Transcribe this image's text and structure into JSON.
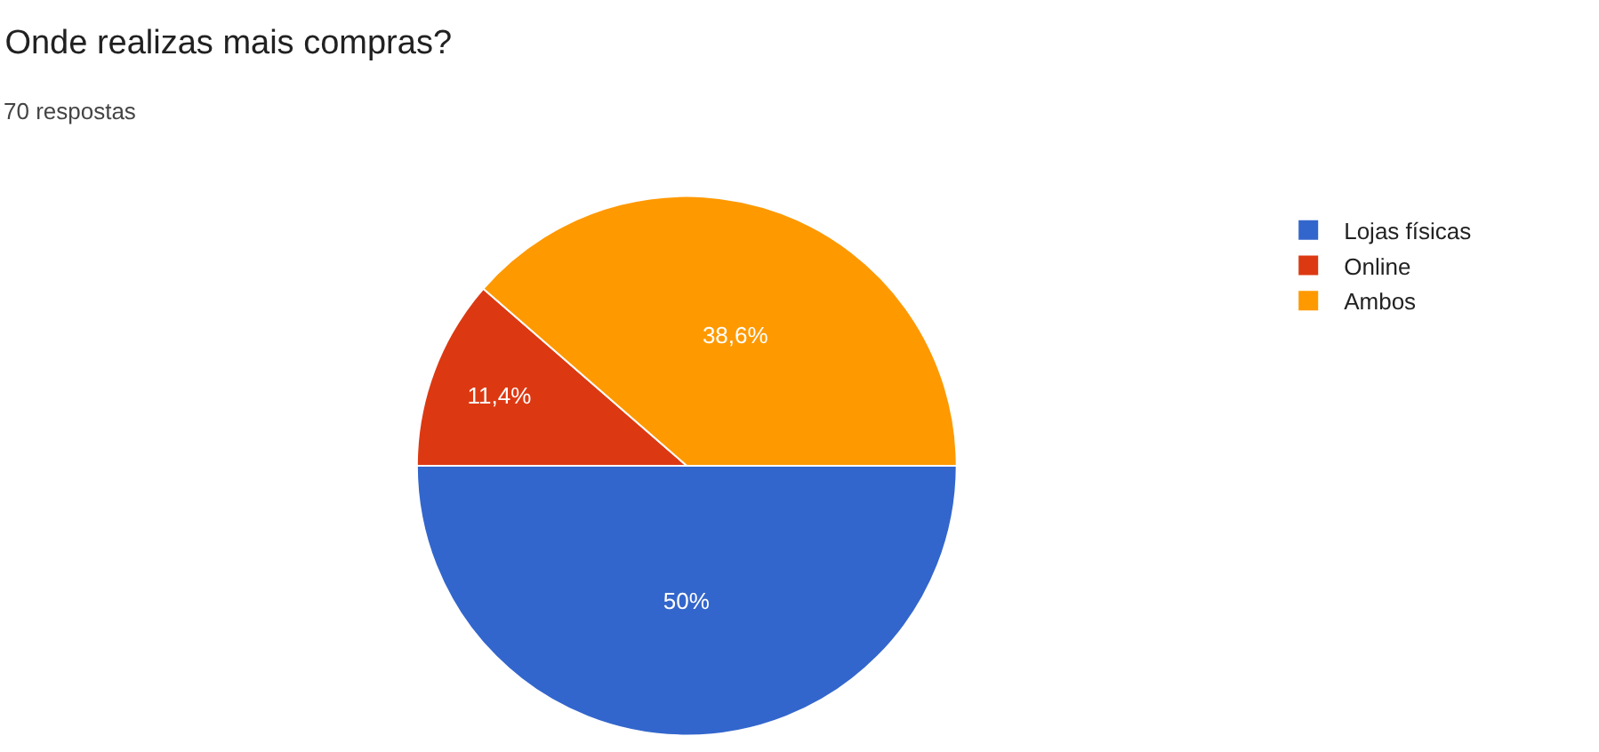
{
  "chart_data": {
    "type": "pie",
    "title": "Onde realizas mais compras?",
    "subtitle": "70 respostas",
    "categories": [
      "Lojas físicas",
      "Online",
      "Ambos"
    ],
    "values": [
      50,
      11.4,
      38.6
    ],
    "value_labels": [
      "50%",
      "11,4%",
      "38,6%"
    ],
    "colors": [
      "#3366cc",
      "#dc3912",
      "#ff9900"
    ],
    "legend": "top right"
  }
}
